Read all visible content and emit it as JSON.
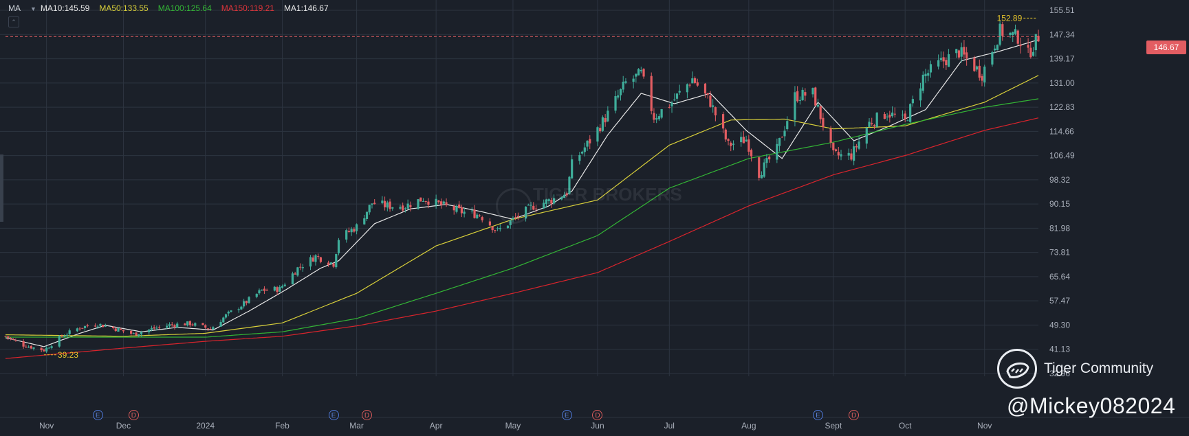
{
  "legend": {
    "indicator": "MA",
    "ma10": "MA10:145.59",
    "ma50": "MA50:133.55",
    "ma100": "MA100:125.64",
    "ma150": "MA150:119.21",
    "ma1": "MA1:146.67"
  },
  "colors": {
    "background": "#1b2029",
    "grid": "#2d3440",
    "up": "#3fae9b",
    "down": "#e35d62",
    "ma10": "#e8e8e8",
    "ma50": "#d8cf3a",
    "ma100": "#33b535",
    "ma150": "#d9242c",
    "label_text": "#a9afba",
    "annotation": "#e6c52b"
  },
  "price_tag": "146.67",
  "annotations": {
    "high": "152.89",
    "low": "39.23"
  },
  "events": [
    {
      "label": "E",
      "kind": "earnings",
      "date": "2023-11-21"
    },
    {
      "label": "D",
      "kind": "dividend",
      "date": "2023-12-05"
    },
    {
      "label": "E",
      "kind": "earnings",
      "date": "2024-02-21"
    },
    {
      "label": "D",
      "kind": "dividend",
      "date": "2024-03-05"
    },
    {
      "label": "E",
      "kind": "earnings",
      "date": "2024-05-22"
    },
    {
      "label": "D",
      "kind": "dividend",
      "date": "2024-06-03"
    },
    {
      "label": "E",
      "kind": "earnings",
      "date": "2024-08-28"
    },
    {
      "label": "D",
      "kind": "dividend",
      "date": "2024-09-11"
    }
  ],
  "watermarks": {
    "center": "TIGER BROKERS",
    "community": "Tiger Community",
    "handle": "@Mickey082024"
  },
  "collapse_icon": "chevron-up-icon",
  "chart_data": {
    "type": "candlestick",
    "title": "",
    "xlabel": "",
    "ylabel": "",
    "ylim": [
      32.0,
      159.0
    ],
    "y_ticks": [
      155.51,
      147.34,
      139.17,
      131.0,
      122.83,
      114.66,
      106.49,
      98.32,
      90.15,
      81.98,
      73.81,
      65.64,
      57.47,
      49.3,
      41.13,
      32.96
    ],
    "x_range": [
      "2023-10-16",
      "2024-11-22"
    ],
    "x_ticks": [
      {
        "label": "Nov",
        "date": "2023-11-01"
      },
      {
        "label": "Dec",
        "date": "2023-12-01"
      },
      {
        "label": "2024",
        "date": "2024-01-02"
      },
      {
        "label": "Feb",
        "date": "2024-02-01"
      },
      {
        "label": "Mar",
        "date": "2024-03-01"
      },
      {
        "label": "Apr",
        "date": "2024-04-01"
      },
      {
        "label": "May",
        "date": "2024-05-01"
      },
      {
        "label": "Jun",
        "date": "2024-06-03"
      },
      {
        "label": "Jul",
        "date": "2024-07-01"
      },
      {
        "label": "Aug",
        "date": "2024-08-01"
      },
      {
        "label": "Sept",
        "date": "2024-09-03"
      },
      {
        "label": "Oct",
        "date": "2024-10-01"
      },
      {
        "label": "Nov",
        "date": "2024-11-01"
      }
    ],
    "grid": true,
    "last_price": 146.67,
    "marked_high": {
      "date": "2024-11-21",
      "value": 152.89
    },
    "marked_low": {
      "date": "2023-10-31",
      "value": 39.23
    },
    "close_path": [
      [
        "2023-10-16",
        45.5
      ],
      [
        "2023-10-23",
        42.5
      ],
      [
        "2023-10-31",
        40.8
      ],
      [
        "2023-11-07",
        45.5
      ],
      [
        "2023-11-14",
        48.5
      ],
      [
        "2023-11-21",
        49.6
      ],
      [
        "2023-11-28",
        48.0
      ],
      [
        "2023-12-05",
        46.2
      ],
      [
        "2023-12-12",
        48.0
      ],
      [
        "2023-12-19",
        49.3
      ],
      [
        "2023-12-27",
        49.8
      ],
      [
        "2024-01-04",
        48.0
      ],
      [
        "2024-01-10",
        52.5
      ],
      [
        "2024-01-17",
        56.5
      ],
      [
        "2024-01-24",
        61.0
      ],
      [
        "2024-01-31",
        61.5
      ],
      [
        "2024-02-07",
        68.5
      ],
      [
        "2024-02-14",
        72.5
      ],
      [
        "2024-02-21",
        70.0
      ],
      [
        "2024-02-23",
        78.5
      ],
      [
        "2024-03-01",
        82.5
      ],
      [
        "2024-03-07",
        90.5
      ],
      [
        "2024-03-13",
        89.5
      ],
      [
        "2024-03-20",
        89.5
      ],
      [
        "2024-03-27",
        92.0
      ],
      [
        "2024-04-04",
        89.5
      ],
      [
        "2024-04-11",
        87.5
      ],
      [
        "2024-04-18",
        86.5
      ],
      [
        "2024-04-25",
        81.0
      ],
      [
        "2024-05-02",
        85.5
      ],
      [
        "2024-05-09",
        89.5
      ],
      [
        "2024-05-16",
        91.5
      ],
      [
        "2024-05-22",
        94.0
      ],
      [
        "2024-05-24",
        103.5
      ],
      [
        "2024-05-31",
        111.5
      ],
      [
        "2024-06-07",
        120.5
      ],
      [
        "2024-06-14",
        131.0
      ],
      [
        "2024-06-20",
        134.0
      ],
      [
        "2024-06-25",
        119.5
      ],
      [
        "2024-07-02",
        124.5
      ],
      [
        "2024-07-10",
        132.5
      ],
      [
        "2024-07-17",
        124.5
      ],
      [
        "2024-07-24",
        110.0
      ],
      [
        "2024-07-31",
        112.0
      ],
      [
        "2024-08-05",
        100.5
      ],
      [
        "2024-08-12",
        108.5
      ],
      [
        "2024-08-19",
        126.5
      ],
      [
        "2024-08-26",
        127.5
      ],
      [
        "2024-09-03",
        106.5
      ],
      [
        "2024-09-10",
        106.5
      ],
      [
        "2024-09-17",
        117.5
      ],
      [
        "2024-09-24",
        121.0
      ],
      [
        "2024-10-01",
        118.0
      ],
      [
        "2024-10-08",
        133.0
      ],
      [
        "2024-10-15",
        138.0
      ],
      [
        "2024-10-22",
        141.5
      ],
      [
        "2024-10-31",
        134.0
      ],
      [
        "2024-11-07",
        148.5
      ],
      [
        "2024-11-14",
        146.5
      ],
      [
        "2024-11-18",
        140.5
      ],
      [
        "2024-11-22",
        146.67
      ]
    ],
    "series": [
      {
        "name": "MA10",
        "value": 145.59,
        "values": [
          [
            "2023-10-16",
            45.0
          ],
          [
            "2023-10-31",
            42.0
          ],
          [
            "2023-11-14",
            46.5
          ],
          [
            "2023-11-24",
            49.2
          ],
          [
            "2023-12-08",
            47.0
          ],
          [
            "2023-12-22",
            48.5
          ],
          [
            "2024-01-05",
            47.6
          ],
          [
            "2024-01-19",
            54.0
          ],
          [
            "2024-02-02",
            61.0
          ],
          [
            "2024-02-16",
            68.5
          ],
          [
            "2024-02-23",
            71.0
          ],
          [
            "2024-03-08",
            83.5
          ],
          [
            "2024-03-22",
            88.5
          ],
          [
            "2024-04-05",
            90.0
          ],
          [
            "2024-04-19",
            87.5
          ],
          [
            "2024-05-01",
            85.0
          ],
          [
            "2024-05-15",
            89.5
          ],
          [
            "2024-05-24",
            94.5
          ],
          [
            "2024-06-07",
            113.5
          ],
          [
            "2024-06-20",
            127.5
          ],
          [
            "2024-07-03",
            124.0
          ],
          [
            "2024-07-17",
            127.5
          ],
          [
            "2024-07-31",
            115.0
          ],
          [
            "2024-08-14",
            105.5
          ],
          [
            "2024-08-28",
            124.5
          ],
          [
            "2024-09-11",
            111.5
          ],
          [
            "2024-09-25",
            116.5
          ],
          [
            "2024-10-09",
            122.0
          ],
          [
            "2024-10-23",
            138.5
          ],
          [
            "2024-11-06",
            141.5
          ],
          [
            "2024-11-22",
            145.59
          ]
        ]
      },
      {
        "name": "MA50",
        "value": 133.55,
        "values": [
          [
            "2023-10-16",
            46.0
          ],
          [
            "2023-12-01",
            45.5
          ],
          [
            "2024-01-02",
            46.5
          ],
          [
            "2024-02-01",
            50.0
          ],
          [
            "2024-03-01",
            60.0
          ],
          [
            "2024-04-01",
            76.0
          ],
          [
            "2024-05-01",
            85.0
          ],
          [
            "2024-06-03",
            91.5
          ],
          [
            "2024-07-01",
            110.0
          ],
          [
            "2024-07-25",
            118.5
          ],
          [
            "2024-08-15",
            118.8
          ],
          [
            "2024-09-03",
            115.5
          ],
          [
            "2024-10-01",
            116.5
          ],
          [
            "2024-11-01",
            124.5
          ],
          [
            "2024-11-22",
            133.55
          ]
        ]
      },
      {
        "name": "MA100",
        "value": 125.64,
        "values": [
          [
            "2023-10-16",
            45.2
          ],
          [
            "2023-12-01",
            45.2
          ],
          [
            "2024-01-02",
            45.2
          ],
          [
            "2024-02-01",
            47.0
          ],
          [
            "2024-03-01",
            51.5
          ],
          [
            "2024-04-01",
            60.0
          ],
          [
            "2024-05-01",
            68.5
          ],
          [
            "2024-06-03",
            79.5
          ],
          [
            "2024-07-01",
            95.5
          ],
          [
            "2024-08-01",
            105.5
          ],
          [
            "2024-09-03",
            111.0
          ],
          [
            "2024-10-01",
            117.0
          ],
          [
            "2024-11-01",
            122.8
          ],
          [
            "2024-11-22",
            125.64
          ]
        ]
      },
      {
        "name": "MA150",
        "value": 119.21,
        "values": [
          [
            "2023-10-16",
            38.0
          ],
          [
            "2023-12-01",
            41.5
          ],
          [
            "2024-01-02",
            43.8
          ],
          [
            "2024-02-01",
            45.5
          ],
          [
            "2024-03-01",
            49.0
          ],
          [
            "2024-04-01",
            54.0
          ],
          [
            "2024-05-01",
            60.0
          ],
          [
            "2024-06-03",
            67.0
          ],
          [
            "2024-07-01",
            77.5
          ],
          [
            "2024-08-01",
            89.5
          ],
          [
            "2024-09-03",
            100.0
          ],
          [
            "2024-10-01",
            106.5
          ],
          [
            "2024-11-01",
            115.0
          ],
          [
            "2024-11-22",
            119.21
          ]
        ]
      }
    ]
  }
}
